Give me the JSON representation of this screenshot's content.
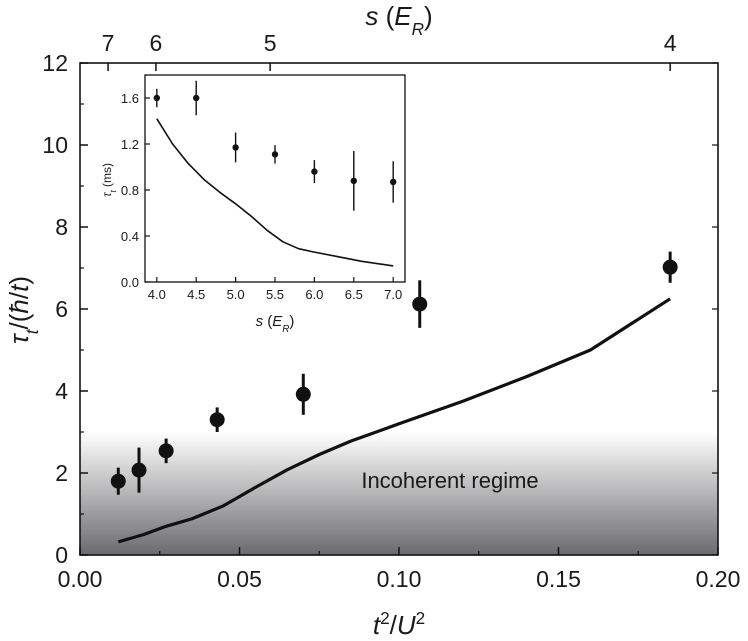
{
  "chart_data": [
    {
      "type": "scatter",
      "xlabel": "t²/U²",
      "ylabel": "τt/(ħ/t)",
      "top_axis_label": "s (ER)",
      "xlim": [
        0.0,
        0.2
      ],
      "ylim": [
        0,
        12
      ],
      "x_ticks": [
        "0.00",
        "0.05",
        "0.10",
        "0.15",
        "0.20"
      ],
      "y_ticks": [
        "0",
        "2",
        "4",
        "6",
        "8",
        "10",
        "12"
      ],
      "top_ticks": [
        {
          "label": "7",
          "x": 0.0088
        },
        {
          "label": "6",
          "x": 0.0238
        },
        {
          "label": "5",
          "x": 0.0596
        },
        {
          "label": "4",
          "x": 0.185
        }
      ],
      "shaded_region": {
        "label": "Incoherent regime",
        "y_top": 3.0,
        "color_top": "#ffffff",
        "color_bottom": "#6b6b6e"
      },
      "series": [
        {
          "style": "points-with-errorbars",
          "points": [
            {
              "x": 0.012,
              "y": 1.8,
              "err": 0.33
            },
            {
              "x": 0.0185,
              "y": 2.07,
              "err": 0.55
            },
            {
              "x": 0.027,
              "y": 2.54,
              "err": 0.3
            },
            {
              "x": 0.043,
              "y": 3.3,
              "err": 0.3
            },
            {
              "x": 0.07,
              "y": 3.92,
              "err": 0.5
            },
            {
              "x": 0.1065,
              "y": 6.12,
              "err": 0.58
            },
            {
              "x": 0.185,
              "y": 7.02,
              "err": 0.38
            }
          ]
        },
        {
          "style": "line",
          "points": [
            {
              "x": 0.012,
              "y": 0.32
            },
            {
              "x": 0.02,
              "y": 0.5
            },
            {
              "x": 0.027,
              "y": 0.7
            },
            {
              "x": 0.035,
              "y": 0.88
            },
            {
              "x": 0.045,
              "y": 1.2
            },
            {
              "x": 0.055,
              "y": 1.65
            },
            {
              "x": 0.065,
              "y": 2.08
            },
            {
              "x": 0.075,
              "y": 2.45
            },
            {
              "x": 0.085,
              "y": 2.78
            },
            {
              "x": 0.1,
              "y": 3.2
            },
            {
              "x": 0.12,
              "y": 3.75
            },
            {
              "x": 0.14,
              "y": 4.35
            },
            {
              "x": 0.16,
              "y": 5.0
            },
            {
              "x": 0.185,
              "y": 6.25
            }
          ]
        }
      ]
    },
    {
      "type": "scatter",
      "xlabel": "s (ER)",
      "ylabel": "τt (ms)",
      "xlim": [
        3.85,
        7.15
      ],
      "ylim": [
        0,
        1.8
      ],
      "x_ticks": [
        "4.0",
        "4.5",
        "5.0",
        "5.5",
        "6.0",
        "6.5",
        "7.0"
      ],
      "y_ticks": [
        "0.0",
        "0.4",
        "0.8",
        "1.2",
        "1.6"
      ],
      "series": [
        {
          "style": "points-with-errorbars",
          "points": [
            {
              "x": 4.0,
              "y": 1.6,
              "err": 0.08
            },
            {
              "x": 4.5,
              "y": 1.6,
              "err": 0.15
            },
            {
              "x": 5.0,
              "y": 1.17,
              "err": 0.13
            },
            {
              "x": 5.5,
              "y": 1.11,
              "err": 0.08
            },
            {
              "x": 6.0,
              "y": 0.96,
              "err": 0.1
            },
            {
              "x": 6.5,
              "y": 0.88,
              "err": 0.26
            },
            {
              "x": 7.0,
              "y": 0.87,
              "err": 0.18
            }
          ]
        },
        {
          "style": "line",
          "points": [
            {
              "x": 4.0,
              "y": 1.42
            },
            {
              "x": 4.2,
              "y": 1.2
            },
            {
              "x": 4.4,
              "y": 1.03
            },
            {
              "x": 4.6,
              "y": 0.89
            },
            {
              "x": 4.8,
              "y": 0.78
            },
            {
              "x": 5.0,
              "y": 0.68
            },
            {
              "x": 5.2,
              "y": 0.57
            },
            {
              "x": 5.4,
              "y": 0.45
            },
            {
              "x": 5.6,
              "y": 0.35
            },
            {
              "x": 5.8,
              "y": 0.29
            },
            {
              "x": 6.0,
              "y": 0.26
            },
            {
              "x": 6.3,
              "y": 0.22
            },
            {
              "x": 6.6,
              "y": 0.18
            },
            {
              "x": 7.0,
              "y": 0.14
            }
          ]
        }
      ]
    }
  ]
}
